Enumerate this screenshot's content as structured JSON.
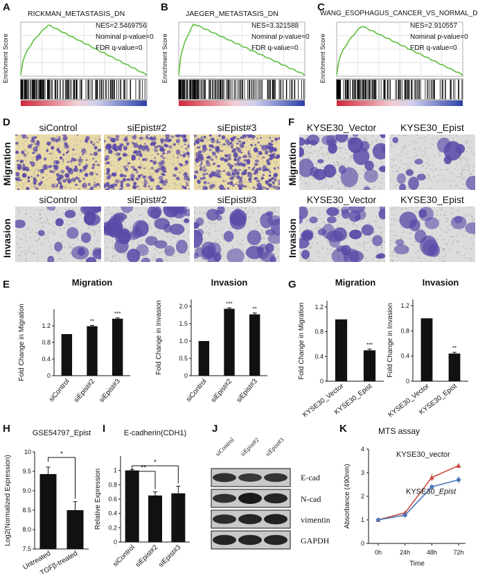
{
  "panels": {
    "A": {
      "letter": "A",
      "title": "RICKMAN_METASTASIS_DN",
      "nes": "NES=2.5469756",
      "pval": "Nominal p-value=0",
      "fdr": "FDR q-value=0",
      "ylabel": "Enrichment Score"
    },
    "B": {
      "letter": "B",
      "title": "JAEGER_METASTASIS_DN",
      "nes": "NES=3.321588",
      "pval": "Nominal p-value=0",
      "fdr": "FDR q-value=0",
      "ylabel": "Enrichment Score"
    },
    "C": {
      "letter": "C",
      "title": "WANG_ESOPHAGUS_CANCER_VS_NORMAL_DN",
      "nes": "NES=2.910557",
      "pval": "Nominal p-value=0",
      "fdr": "FDR q-value=0",
      "ylabel": "Enrichment Score"
    },
    "D": {
      "letter": "D",
      "row1": "Migration",
      "row2": "Invasion",
      "cols": [
        "siControl",
        "siEpist#2",
        "siEpist#3"
      ]
    },
    "F": {
      "letter": "F",
      "row1": "Migration",
      "row2": "Invasion",
      "cols": [
        "KYSE30_Vector",
        "KYSE30_Epist"
      ]
    },
    "E": {
      "letter": "E"
    },
    "G": {
      "letter": "G"
    },
    "H": {
      "letter": "H"
    },
    "I": {
      "letter": "I"
    },
    "J": {
      "letter": "J",
      "lanes": [
        "siControl",
        "siEpist#2",
        "siEpist#3"
      ],
      "bands": [
        "E-cad",
        "N-cad",
        "vimentin",
        "GAPDH"
      ]
    },
    "K": {
      "letter": "K"
    }
  },
  "colors": {
    "gsea_line": "#5cbf3a",
    "bar": "#111111",
    "vector_line": "#c8463c",
    "epist_line": "#4a78b8",
    "migration_stain": "#5a4aa8",
    "heat_red": "#d0283a",
    "heat_blue": "#2840a8"
  },
  "chart_data": [
    {
      "id": "E-migration",
      "type": "bar",
      "title": "Migration",
      "ylabel": "Fold Change in Migration",
      "categories": [
        "siControl",
        "siEpist#2",
        "siEpist#3"
      ],
      "values": [
        1.0,
        1.19,
        1.37
      ],
      "errors": [
        0,
        0.02,
        0.02
      ],
      "sig": [
        "",
        "**",
        "***"
      ],
      "ylim": [
        0,
        1.6
      ],
      "yticks": [
        "0",
        "0.4",
        "0.8",
        "1.2"
      ]
    },
    {
      "id": "E-invasion",
      "type": "bar",
      "title": "Invasion",
      "ylabel": "Fold Change in Invasion",
      "categories": [
        "siControl",
        "siEpist#2",
        "siEpist#3"
      ],
      "values": [
        1.0,
        1.93,
        1.77
      ],
      "errors": [
        0,
        0.03,
        0.04
      ],
      "sig": [
        "",
        "***",
        "**"
      ],
      "ylim": [
        0,
        2.2
      ],
      "yticks": [
        "0",
        "0.5",
        "1.0",
        "1.5",
        "2.0"
      ]
    },
    {
      "id": "G-migration",
      "type": "bar",
      "title": "Migration",
      "ylabel": "Fold Change in Migration",
      "categories": [
        "KYSE30_Vector",
        "KYSE30_Epist"
      ],
      "values": [
        1.0,
        0.5
      ],
      "errors": [
        0,
        0.02
      ],
      "sig": [
        "",
        "***"
      ],
      "ylim": [
        0,
        1.3
      ],
      "yticks": [
        "0",
        "0.4",
        "0.8",
        "1.2"
      ]
    },
    {
      "id": "G-invasion",
      "type": "bar",
      "title": "Invasion",
      "ylabel": "Fold Change in Invasion",
      "categories": [
        "KYSE30_Vector",
        "KYSE30_Epist"
      ],
      "values": [
        1.0,
        0.44
      ],
      "errors": [
        0,
        0.02
      ],
      "sig": [
        "",
        "**"
      ],
      "ylim": [
        0,
        1.3
      ],
      "yticks": [
        "0",
        "0.4",
        "0.8",
        "1.2"
      ]
    },
    {
      "id": "H",
      "type": "bar",
      "title": "GSE54797_Epist",
      "ylabel": "Log2(Normalized Expression)",
      "categories": [
        "Untreated",
        "TGFβ-treated"
      ],
      "values": [
        9.43,
        8.5
      ],
      "errors": [
        0.18,
        0.22
      ],
      "sig_pairs": [
        {
          "from": 0,
          "to": 1,
          "label": "*"
        }
      ],
      "ylim": [
        7.5,
        10.0
      ],
      "yticks": [
        "7.5",
        "8.0",
        "8.5",
        "9.0",
        "9.5",
        "10"
      ]
    },
    {
      "id": "I",
      "type": "bar",
      "title": "E-cadherin(CDH1)",
      "ylabel": "Relative Expression",
      "categories": [
        "siControl",
        "siEpist#2",
        "siEpist#3"
      ],
      "values": [
        1.0,
        0.65,
        0.68
      ],
      "errors": [
        0.01,
        0.05,
        0.1
      ],
      "sig_pairs": [
        {
          "from": 0,
          "to": 1,
          "label": "**"
        },
        {
          "from": 0,
          "to": 2,
          "label": "*"
        }
      ],
      "ylim": [
        0,
        1.2
      ],
      "yticks": [
        "0",
        "0.2",
        "0.4",
        "0.6",
        "0.8",
        "1"
      ]
    },
    {
      "id": "K",
      "type": "line",
      "title": "MTS assay",
      "xlabel": "Time",
      "ylabel": "Absorbance (490nm)",
      "categories": [
        "0h",
        "24h",
        "48h",
        "72h"
      ],
      "series": [
        {
          "name": "KYSE30_vector",
          "values": [
            1.0,
            1.3,
            2.8,
            3.3
          ],
          "errors": [
            0.03,
            0.05,
            0.15,
            0.1
          ]
        },
        {
          "name": "KYSE30_Epist",
          "values": [
            1.0,
            1.2,
            2.4,
            2.7
          ],
          "errors": [
            0.03,
            0.04,
            0.1,
            0.15
          ]
        }
      ],
      "ylim": [
        0,
        4
      ],
      "yticks": [
        "0",
        "1",
        "2",
        "3",
        "4"
      ]
    }
  ]
}
